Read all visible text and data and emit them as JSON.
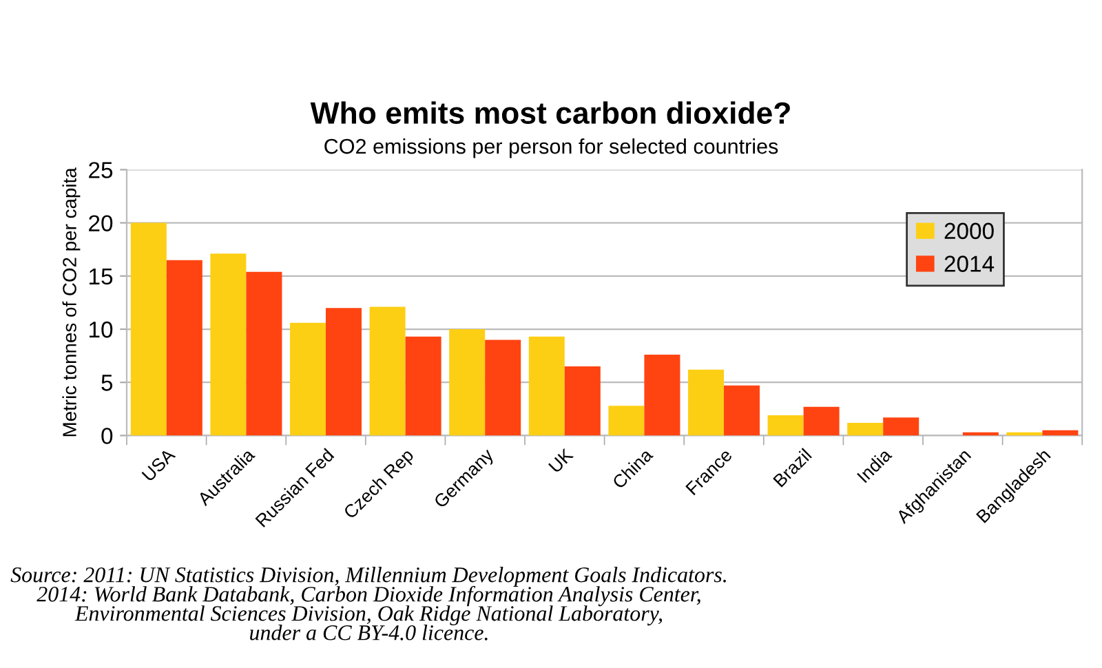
{
  "chart_data": {
    "type": "bar",
    "title": "Who emits most carbon dioxide?",
    "subtitle": "CO2 emissions per person for selected countries",
    "ylabel": "Metric tonnes of CO2 per capita",
    "categories": [
      "USA",
      "Australia",
      "Russian Fed",
      "Czech Rep",
      "Germany",
      "UK",
      "China",
      "France",
      "Brazil",
      "India",
      "Afghanistan",
      "Bangladesh"
    ],
    "series": [
      {
        "name": "2000",
        "color": "#fdcf14",
        "values": [
          20.0,
          17.1,
          10.6,
          12.1,
          10.0,
          9.3,
          2.8,
          6.2,
          1.9,
          1.2,
          0.0,
          0.3
        ]
      },
      {
        "name": "2014",
        "color": "#ff4411",
        "values": [
          16.5,
          15.4,
          12.0,
          9.3,
          9.0,
          6.5,
          7.6,
          4.7,
          2.7,
          1.7,
          0.3,
          0.5
        ]
      }
    ],
    "ylim": [
      0,
      25
    ],
    "yticks": [
      0,
      5,
      10,
      15,
      20,
      25
    ],
    "grid": "y",
    "legend": "top right",
    "annotations": [
      "Source: 2011: UN Statistics Division, Millennium Development Goals Indicators.\n2014: World Bank Databank, Carbon Dioxide Information Analysis Center,\nEnvironmental Sciences Division, Oak Ridge National Laboratory,\nunder a CC BY-4.0 licence."
    ]
  }
}
